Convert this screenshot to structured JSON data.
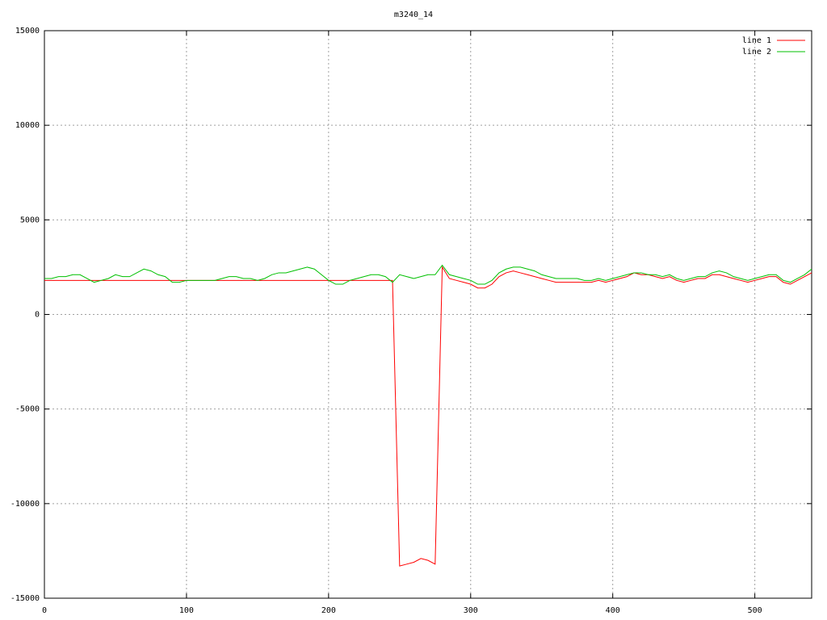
{
  "chart_data": {
    "type": "line",
    "title": "m3240_14",
    "x": [
      0,
      5,
      10,
      15,
      20,
      25,
      30,
      35,
      40,
      45,
      50,
      55,
      60,
      65,
      70,
      75,
      80,
      85,
      90,
      95,
      100,
      105,
      110,
      115,
      120,
      125,
      130,
      135,
      140,
      145,
      150,
      155,
      160,
      165,
      170,
      175,
      180,
      185,
      190,
      195,
      200,
      205,
      210,
      215,
      220,
      225,
      230,
      235,
      240,
      245,
      250,
      255,
      260,
      265,
      270,
      275,
      280,
      285,
      290,
      295,
      300,
      305,
      310,
      315,
      320,
      325,
      330,
      335,
      340,
      345,
      350,
      355,
      360,
      365,
      370,
      375,
      380,
      385,
      390,
      395,
      400,
      405,
      410,
      415,
      420,
      425,
      430,
      435,
      440,
      445,
      450,
      455,
      460,
      465,
      470,
      475,
      480,
      485,
      490,
      495,
      500,
      505,
      510,
      515,
      520,
      525,
      530,
      535,
      540
    ],
    "series": [
      {
        "name": "line 1",
        "color": "#ff0000",
        "values": [
          1800,
          1800,
          1800,
          1800,
          1800,
          1800,
          1800,
          1800,
          1800,
          1800,
          1800,
          1800,
          1800,
          1800,
          1800,
          1800,
          1800,
          1800,
          1800,
          1800,
          1800,
          1800,
          1800,
          1800,
          1800,
          1800,
          1800,
          1800,
          1800,
          1800,
          1800,
          1800,
          1800,
          1800,
          1800,
          1800,
          1800,
          1800,
          1800,
          1800,
          1800,
          1800,
          1800,
          1800,
          1800,
          1800,
          1800,
          1800,
          1800,
          1800,
          -13300,
          -13200,
          -13100,
          -12900,
          -13000,
          -13200,
          2500,
          1900,
          1800,
          1700,
          1600,
          1400,
          1400,
          1600,
          2000,
          2200,
          2300,
          2200,
          2100,
          2000,
          1900,
          1800,
          1700,
          1700,
          1700,
          1700,
          1700,
          1700,
          1800,
          1700,
          1800,
          1900,
          2000,
          2200,
          2100,
          2100,
          2000,
          1900,
          2000,
          1800,
          1700,
          1800,
          1900,
          1900,
          2100,
          2100,
          2000,
          1900,
          1800,
          1700,
          1800,
          1900,
          2000,
          2000,
          1700,
          1600,
          1800,
          2000,
          2200
        ]
      },
      {
        "name": "line 2",
        "color": "#00c000",
        "values": [
          1900,
          1900,
          2000,
          2000,
          2100,
          2100,
          1900,
          1700,
          1800,
          1900,
          2100,
          2000,
          2000,
          2200,
          2400,
          2300,
          2100,
          2000,
          1700,
          1700,
          1800,
          1800,
          1800,
          1800,
          1800,
          1900,
          2000,
          2000,
          1900,
          1900,
          1800,
          1900,
          2100,
          2200,
          2200,
          2300,
          2400,
          2500,
          2400,
          2100,
          1800,
          1600,
          1600,
          1800,
          1900,
          2000,
          2100,
          2100,
          2000,
          1700,
          2100,
          2000,
          1900,
          2000,
          2100,
          2100,
          2600,
          2100,
          2000,
          1900,
          1800,
          1600,
          1600,
          1800,
          2200,
          2400,
          2500,
          2500,
          2400,
          2300,
          2100,
          2000,
          1900,
          1900,
          1900,
          1900,
          1800,
          1800,
          1900,
          1800,
          1900,
          2000,
          2100,
          2200,
          2200,
          2100,
          2100,
          2000,
          2100,
          1900,
          1800,
          1900,
          2000,
          2000,
          2200,
          2300,
          2200,
          2000,
          1900,
          1800,
          1900,
          2000,
          2100,
          2100,
          1800,
          1700,
          1900,
          2100,
          2400
        ]
      }
    ],
    "xlim": [
      0,
      540
    ],
    "ylim": [
      -15000,
      15000
    ],
    "xticks": [
      0,
      100,
      200,
      300,
      400,
      500
    ],
    "yticks": [
      -15000,
      -10000,
      -5000,
      0,
      5000,
      10000,
      15000
    ],
    "grid": true,
    "legend": "top-right"
  }
}
